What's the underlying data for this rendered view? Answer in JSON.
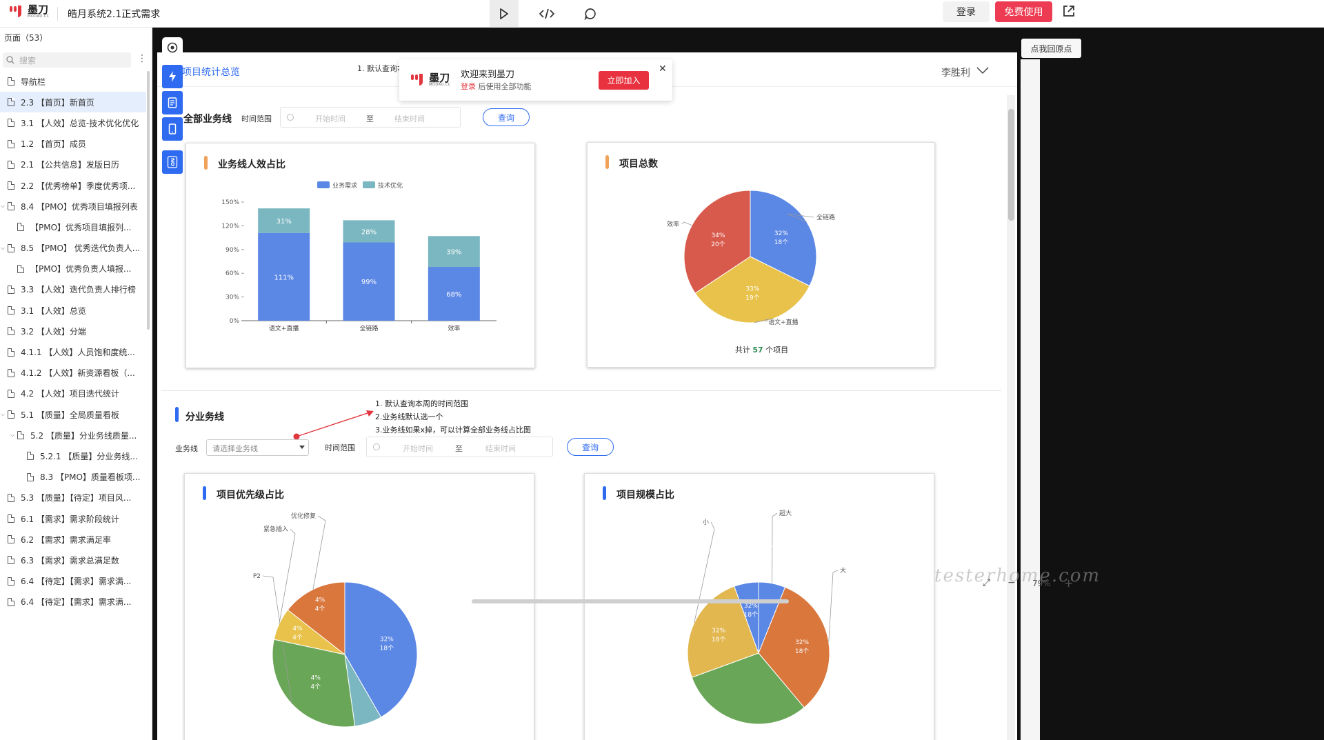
{
  "app": {
    "brand": "墨刀",
    "brand_sub": "MODAO.CC",
    "project_title": "皓月系统2.1正式需求",
    "login_label": "登录",
    "free_label": "免费使用",
    "back_origin_label": "点我回原点"
  },
  "colors": {
    "accent": "#2e6bf0",
    "brand": "#e2363f",
    "free": "#ec3b52",
    "blue": "#5b87e5",
    "teal": "#7bb7c0",
    "red": "#d85a4d",
    "yellow": "#e8c24b",
    "orange": "#d9773d",
    "green": "#6aa658",
    "tan": "#e2b74f"
  },
  "sidebar": {
    "header": "页面（53）",
    "search_placeholder": "搜索",
    "items": [
      {
        "label": "导航栏",
        "level": 0,
        "caret": false
      },
      {
        "label": "2.3 【首页】新首页",
        "level": 0,
        "caret": false,
        "selected": true
      },
      {
        "label": "3.1 【人效】总览-技术优化优化",
        "level": 0,
        "caret": false
      },
      {
        "label": "1.2 【首页】成员",
        "level": 0,
        "caret": false
      },
      {
        "label": "2.1 【公共信息】发版日历",
        "level": 0,
        "caret": false
      },
      {
        "label": "2.2 【优秀榜单】季度优秀项...",
        "level": 0,
        "caret": false
      },
      {
        "label": "8.4 【PMO】优秀项目填报列表",
        "level": 0,
        "caret": true
      },
      {
        "label": "【PMO】优秀项目填报列...",
        "level": 1,
        "caret": false
      },
      {
        "label": "8.5 【PMO】 优秀迭代负责人...",
        "level": 0,
        "caret": true
      },
      {
        "label": "【PMO】优秀负责人填报...",
        "level": 1,
        "caret": false
      },
      {
        "label": "3.3 【人效】迭代负责人排行榜",
        "level": 0,
        "caret": false
      },
      {
        "label": "3.1 【人效】总览",
        "level": 0,
        "caret": false
      },
      {
        "label": "3.2 【人效】分端",
        "level": 0,
        "caret": false
      },
      {
        "label": "4.1.1 【人效】人员饱和度统...",
        "level": 0,
        "caret": false
      },
      {
        "label": "4.1.2 【人效】新资源看板（...",
        "level": 0,
        "caret": false
      },
      {
        "label": "4.2 【人效】项目迭代统计",
        "level": 0,
        "caret": false
      },
      {
        "label": "5.1 【质量】全局质量看板",
        "level": 0,
        "caret": true
      },
      {
        "label": "5.2 【质量】分业务线质量...",
        "level": 1,
        "caret": true
      },
      {
        "label": "5.2.1 【质量】分业务线...",
        "level": 2,
        "caret": false
      },
      {
        "label": "8.3 【PMO】质量看板项...",
        "level": 2,
        "caret": false
      },
      {
        "label": "5.3 【质量】【待定】项目风...",
        "level": 0,
        "caret": false
      },
      {
        "label": "6.1 【需求】需求阶段统计",
        "level": 0,
        "caret": false
      },
      {
        "label": "6.2 【需求】需求满足率",
        "level": 0,
        "caret": false
      },
      {
        "label": "6.3 【需求】需求总满足数",
        "level": 0,
        "caret": false
      },
      {
        "label": "6.4 【待定】【需求】需求满...",
        "level": 0,
        "caret": false
      },
      {
        "label": "6.4 【待定】【需求】需求满...",
        "level": 0,
        "caret": false
      }
    ]
  },
  "page": {
    "title": "项目统计总览",
    "note_top": "1. 默认查询本",
    "user_name": "李胜利",
    "section1": {
      "title": "全部业务线",
      "time_label": "时间范围",
      "start_placeholder": "开始时间",
      "to": "至",
      "end_placeholder": "结束时间",
      "query_label": "查询"
    },
    "section2": {
      "title": "分业务线",
      "notes": [
        "1. 默认查询本周的时间范围",
        "2.业务线默认选一个",
        "3.业务线如果x掉，可以计算全部业务线占比图"
      ],
      "biz_label": "业务线",
      "biz_placeholder": "请选择业务线",
      "time_label": "时间范围",
      "start_placeholder": "开始时间",
      "to": "至",
      "end_placeholder": "结束时间",
      "query_label": "查询"
    },
    "cards": {
      "c1_title": "业务线人效占比",
      "c2_title": "项目总数",
      "c2_total_prefix": "共计",
      "c2_total_value": "57",
      "c2_total_suffix": "个项目",
      "c3_title": "项目优先级占比",
      "c4_title": "项目规模占比"
    }
  },
  "welcome": {
    "title": "欢迎来到墨刀",
    "login_word": "登录",
    "sub": " 后使用全部功能",
    "join_label": "立即加入"
  },
  "zoom": {
    "value": "79%"
  },
  "watermark": "testerhome.com",
  "chart_data": [
    {
      "type": "bar",
      "title": "业务线人效占比",
      "stacked": true,
      "categories": [
        "语文+直播",
        "全链路",
        "效率"
      ],
      "series": [
        {
          "name": "业务需求",
          "values": [
            111,
            99,
            68
          ],
          "labels": [
            "111%",
            "99%",
            "68%"
          ],
          "color": "#5b87e5"
        },
        {
          "name": "技术优化",
          "values": [
            31,
            28,
            39
          ],
          "labels": [
            "31%",
            "28%",
            "39%"
          ],
          "color": "#7bb7c0"
        }
      ],
      "yticks": [
        "0%",
        "30%",
        "60%",
        "90%",
        "120%",
        "150%"
      ],
      "ylim": [
        0,
        150
      ],
      "legend": "top-center"
    },
    {
      "type": "pie",
      "title": "项目总数",
      "slices": [
        {
          "name": "全链路",
          "percent": 32,
          "count": 18,
          "pct_label": "32%",
          "count_label": "18个",
          "color": "#5b87e5"
        },
        {
          "name": "语文+直播",
          "percent": 33,
          "count": 19,
          "pct_label": "33%",
          "count_label": "19个",
          "color": "#e8c24b"
        },
        {
          "name": "效率",
          "percent": 34,
          "count": 20,
          "pct_label": "34%",
          "count_label": "20个",
          "color": "#d85a4d"
        }
      ]
    },
    {
      "type": "pie",
      "title": "项目优先级占比",
      "partial": true,
      "slices": [
        {
          "name": "",
          "percent": 32,
          "pct_label": "32%",
          "count_label": "18个",
          "color": "#5b87e5"
        },
        {
          "name": "",
          "percent": 4,
          "color": "#7bb7c0"
        },
        {
          "name": "P2",
          "percent": 4,
          "pct_label": "4%",
          "count_label": "4个",
          "color": "#6aa658"
        },
        {
          "name": "紧急插入",
          "percent": 4,
          "pct_label": "4%",
          "count_label": "4个",
          "color": "#e8c24b"
        },
        {
          "name": "优化修复",
          "percent": 4,
          "pct_label": "4%",
          "count_label": "4个",
          "color": "#d9773d"
        }
      ]
    },
    {
      "type": "pie",
      "title": "项目规模占比",
      "partial": true,
      "slices": [
        {
          "name": "超大",
          "percent": 4,
          "color": "#5b87e5"
        },
        {
          "name": "大",
          "percent": 32,
          "pct_label": "32%",
          "count_label": "18个",
          "color": "#d9773d"
        },
        {
          "name": "",
          "percent": 20,
          "color": "#6aa658"
        },
        {
          "name": "小",
          "percent": 32,
          "pct_label": "32%",
          "count_label": "18个",
          "color": "#e2b74f"
        },
        {
          "name": "",
          "percent": 32,
          "pct_label": "32%",
          "count_label": "18个",
          "color": "#5b87e5"
        }
      ]
    }
  ]
}
